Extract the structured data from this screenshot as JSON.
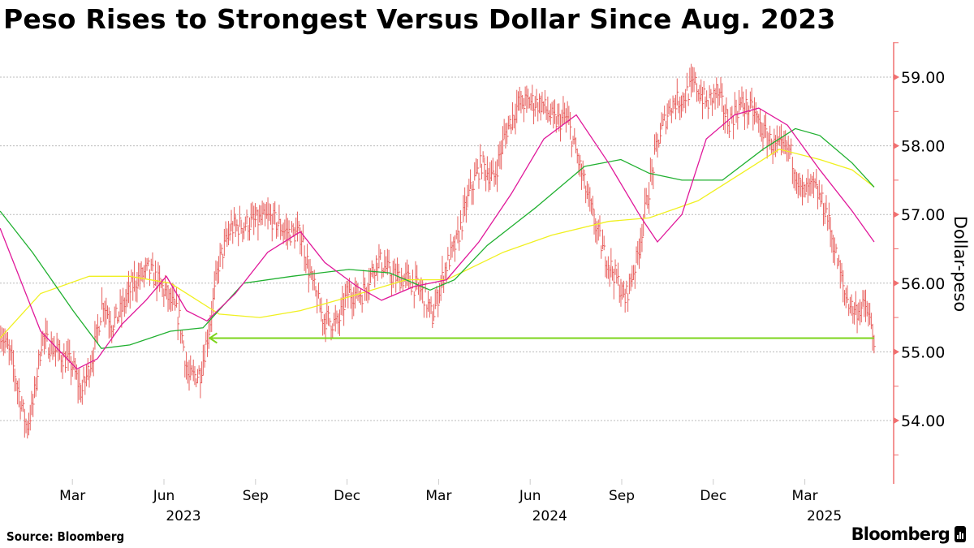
{
  "title": "Peso Rises to Strongest Versus Dollar Since Aug. 2023",
  "source": "Source: Bloomberg",
  "brand": "Bloomberg",
  "chart_data": {
    "type": "line",
    "title": "Peso Rises to Strongest Versus Dollar Since Aug. 2023",
    "x_units": "months since 2023-01-01",
    "ylabel": "Dollar-peso",
    "ylim": [
      53.2,
      59.5
    ],
    "yticks": [
      "54.00",
      "55.00",
      "56.00",
      "57.00",
      "58.00",
      "59.00"
    ],
    "ytick_values": [
      54,
      55,
      56,
      57,
      58,
      59
    ],
    "xticks": [
      {
        "label": "Mar",
        "year": "",
        "m": 2
      },
      {
        "label": "Jun",
        "year": "2023",
        "m": 5
      },
      {
        "label": "Sep",
        "year": "",
        "m": 8
      },
      {
        "label": "Dec",
        "year": "",
        "m": 11
      },
      {
        "label": "Mar",
        "year": "",
        "m": 14
      },
      {
        "label": "Jun",
        "year": "2024",
        "m": 17
      },
      {
        "label": "Sep",
        "year": "",
        "m": 20
      },
      {
        "label": "Dec",
        "year": "",
        "m": 23
      },
      {
        "label": "Mar",
        "year": "2025",
        "m": 26
      }
    ],
    "grid": true,
    "colors": {
      "price": "#e8605e",
      "ma_short": "#e0189a",
      "ma_mid": "#20b030",
      "ma_long": "#f0f020",
      "support": "#7cd41c",
      "axis": "#f07070"
    },
    "price": [
      [
        -0.35,
        55.3
      ],
      [
        0,
        54.9
      ],
      [
        0.5,
        53.9
      ],
      [
        0.7,
        54.2
      ],
      [
        1,
        55.2
      ],
      [
        1.5,
        55.0
      ],
      [
        2,
        54.8
      ],
      [
        2.3,
        54.4
      ],
      [
        2.7,
        55.0
      ],
      [
        3,
        55.75
      ],
      [
        3.3,
        55.4
      ],
      [
        3.6,
        55.6
      ],
      [
        4,
        56.0
      ],
      [
        4.5,
        56.2
      ],
      [
        5,
        55.9
      ],
      [
        5.5,
        55.5
      ],
      [
        5.8,
        54.6
      ],
      [
        6.2,
        54.7
      ],
      [
        6.5,
        55.4
      ],
      [
        6.8,
        56.3
      ],
      [
        7.2,
        56.8
      ],
      [
        8,
        56.9
      ],
      [
        8.5,
        56.95
      ],
      [
        9,
        56.75
      ],
      [
        9.5,
        56.7
      ],
      [
        9.8,
        56.1
      ],
      [
        10.2,
        55.5
      ],
      [
        10.7,
        55.4
      ],
      [
        11,
        55.85
      ],
      [
        11.5,
        55.85
      ],
      [
        12,
        56.35
      ],
      [
        12.5,
        56.1
      ],
      [
        13,
        56.05
      ],
      [
        13.5,
        55.85
      ],
      [
        13.8,
        55.5
      ],
      [
        14.2,
        56.2
      ],
      [
        14.6,
        56.6
      ],
      [
        15,
        57.3
      ],
      [
        15.4,
        57.75
      ],
      [
        15.8,
        57.5
      ],
      [
        16.2,
        58.2
      ],
      [
        16.6,
        58.6
      ],
      [
        17,
        58.65
      ],
      [
        17.4,
        58.6
      ],
      [
        17.8,
        58.35
      ],
      [
        18.2,
        58.4
      ],
      [
        18.6,
        57.75
      ],
      [
        19,
        57.05
      ],
      [
        19.4,
        56.45
      ],
      [
        19.8,
        56.1
      ],
      [
        20.1,
        55.75
      ],
      [
        20.5,
        56.35
      ],
      [
        20.8,
        57.15
      ],
      [
        21.2,
        58.1
      ],
      [
        21.6,
        58.6
      ],
      [
        22,
        58.7
      ],
      [
        22.4,
        58.9
      ],
      [
        22.8,
        58.6
      ],
      [
        23.1,
        58.8
      ],
      [
        23.5,
        58.35
      ],
      [
        23.9,
        58.6
      ],
      [
        24.3,
        58.5
      ],
      [
        24.7,
        58.15
      ],
      [
        25.1,
        57.95
      ],
      [
        25.5,
        57.95
      ],
      [
        25.9,
        57.3
      ],
      [
        26.3,
        57.4
      ],
      [
        26.7,
        57.05
      ],
      [
        27,
        56.45
      ],
      [
        27.3,
        55.85
      ],
      [
        27.6,
        55.6
      ],
      [
        28,
        55.65
      ],
      [
        28.27,
        55.2
      ]
    ],
    "series": [
      {
        "key": "ma_short",
        "points": [
          [
            -0.37,
            56.8
          ],
          [
            0.96,
            55.3
          ],
          [
            2.15,
            54.75
          ],
          [
            2.82,
            54.9
          ],
          [
            3.62,
            55.4
          ],
          [
            4.41,
            55.75
          ],
          [
            5.08,
            56.1
          ],
          [
            5.74,
            55.6
          ],
          [
            6.41,
            55.45
          ],
          [
            7.34,
            55.85
          ],
          [
            8.4,
            56.45
          ],
          [
            9.47,
            56.75
          ],
          [
            10.27,
            56.3
          ],
          [
            11.33,
            55.95
          ],
          [
            12.13,
            55.75
          ],
          [
            13.19,
            55.95
          ],
          [
            14.26,
            56.05
          ],
          [
            15.32,
            56.6
          ],
          [
            16.38,
            57.3
          ],
          [
            17.45,
            58.1
          ],
          [
            18.51,
            58.45
          ],
          [
            19.57,
            57.75
          ],
          [
            20.64,
            56.95
          ],
          [
            21.17,
            56.6
          ],
          [
            21.97,
            57.0
          ],
          [
            22.77,
            58.1
          ],
          [
            23.7,
            58.45
          ],
          [
            24.49,
            58.55
          ],
          [
            25.43,
            58.3
          ],
          [
            26.49,
            57.65
          ],
          [
            27.55,
            57.05
          ],
          [
            28.27,
            56.6
          ]
        ]
      },
      {
        "key": "ma_mid",
        "points": [
          [
            -0.37,
            57.05
          ],
          [
            0.69,
            56.45
          ],
          [
            2.02,
            55.6
          ],
          [
            2.95,
            55.05
          ],
          [
            3.88,
            55.1
          ],
          [
            5.21,
            55.3
          ],
          [
            6.28,
            55.35
          ],
          [
            7.61,
            56.0
          ],
          [
            9.2,
            56.1
          ],
          [
            11.06,
            56.2
          ],
          [
            12.39,
            56.15
          ],
          [
            13.72,
            55.9
          ],
          [
            14.52,
            56.05
          ],
          [
            15.59,
            56.55
          ],
          [
            17.18,
            57.1
          ],
          [
            18.78,
            57.7
          ],
          [
            19.97,
            57.8
          ],
          [
            20.9,
            57.6
          ],
          [
            21.97,
            57.5
          ],
          [
            23.3,
            57.5
          ],
          [
            24.63,
            57.95
          ],
          [
            25.69,
            58.25
          ],
          [
            26.49,
            58.15
          ],
          [
            27.55,
            57.75
          ],
          [
            28.27,
            57.4
          ]
        ]
      },
      {
        "key": "ma_long",
        "points": [
          [
            -0.37,
            55.2
          ],
          [
            0.96,
            55.85
          ],
          [
            2.55,
            56.1
          ],
          [
            3.88,
            56.1
          ],
          [
            5.21,
            56.0
          ],
          [
            6.81,
            55.55
          ],
          [
            8.14,
            55.5
          ],
          [
            9.47,
            55.6
          ],
          [
            11.06,
            55.8
          ],
          [
            12.93,
            56.05
          ],
          [
            14.26,
            56.05
          ],
          [
            16.12,
            56.45
          ],
          [
            17.71,
            56.7
          ],
          [
            19.57,
            56.9
          ],
          [
            20.9,
            56.95
          ],
          [
            22.5,
            57.2
          ],
          [
            24.1,
            57.65
          ],
          [
            25.16,
            57.95
          ],
          [
            26.49,
            57.8
          ],
          [
            27.55,
            57.65
          ],
          [
            28.27,
            57.4
          ]
        ]
      }
    ],
    "support_line": {
      "value": 55.2,
      "from_m": 6.5,
      "to_m": 28.27
    }
  }
}
